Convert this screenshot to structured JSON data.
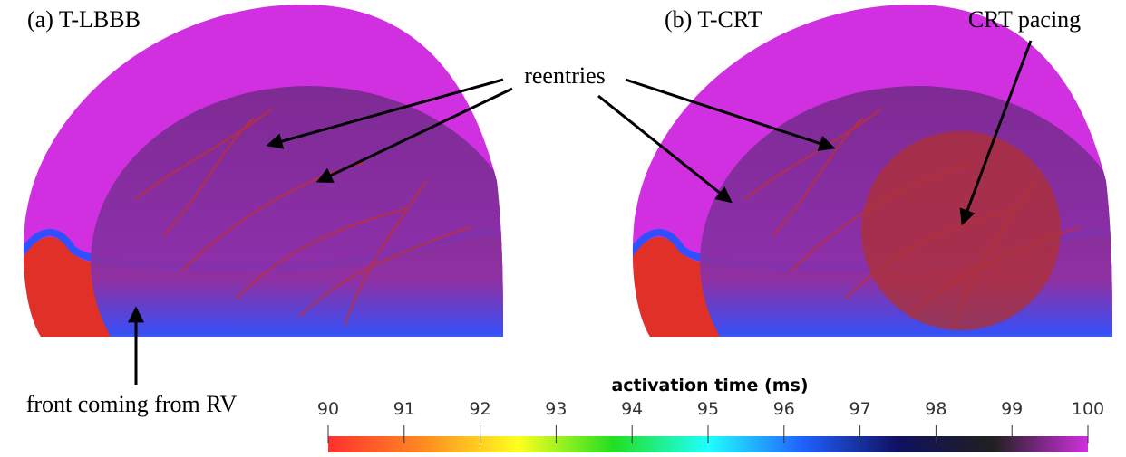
{
  "panels": [
    {
      "label": "(a) T-LBBB"
    },
    {
      "label": "(b) T-CRT"
    }
  ],
  "annotations": {
    "reentries": "reentries",
    "crt_pacing": "CRT pacing",
    "front": "front coming from RV"
  },
  "colorbar": {
    "title": "activation time (ms)",
    "range": [
      90,
      100
    ],
    "ticks": [
      90,
      91,
      92,
      93,
      94,
      95,
      96,
      97,
      98,
      99,
      100
    ],
    "colors": [
      "#ff3030",
      "#ff8a20",
      "#ffff20",
      "#20e020",
      "#20ffff",
      "#2060ff",
      "#101060",
      "#202020",
      "#d030e0"
    ]
  }
}
